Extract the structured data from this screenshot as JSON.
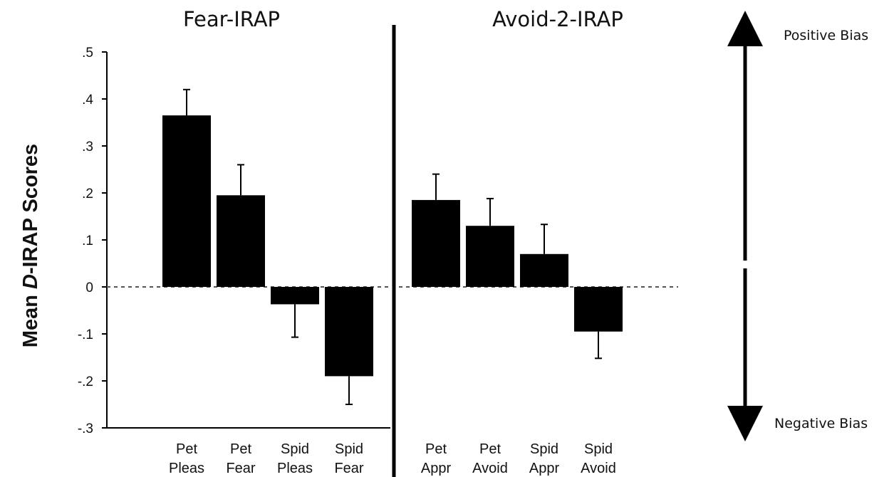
{
  "chart_data": {
    "type": "bar",
    "ylabel_prefix": "Mean ",
    "ylabel_italic": "D",
    "ylabel_suffix": "-IRAP Scores",
    "ylim": [
      -0.3,
      0.5
    ],
    "yticks": [
      {
        "value": 0.5,
        "label": ".5"
      },
      {
        "value": 0.4,
        "label": ".4"
      },
      {
        "value": 0.3,
        "label": ".3"
      },
      {
        "value": 0.2,
        "label": ".2"
      },
      {
        "value": 0.1,
        "label": ".1"
      },
      {
        "value": 0.0,
        "label": "0"
      },
      {
        "value": -0.1,
        "label": "-.1"
      },
      {
        "value": -0.2,
        "label": "-.2"
      },
      {
        "value": -0.3,
        "label": "-.3"
      }
    ],
    "zero_line": "dotted",
    "annotations": {
      "positive": "Positive Bias",
      "negative": "Negative Bias"
    },
    "panels": [
      {
        "title": "Fear-IRAP",
        "categories": [
          [
            "Pet",
            "Pleas"
          ],
          [
            "Pet",
            "Fear"
          ],
          [
            "Spid",
            "Pleas"
          ],
          [
            "Spid",
            "Fear"
          ]
        ],
        "values": [
          0.365,
          0.195,
          -0.037,
          -0.19
        ],
        "errors": [
          0.055,
          0.065,
          0.07,
          0.06
        ]
      },
      {
        "title": "Avoid-2-IRAP",
        "categories": [
          [
            "Pet",
            "Appr"
          ],
          [
            "Pet",
            "Avoid"
          ],
          [
            "Spid",
            "Appr"
          ],
          [
            "Spid",
            "Avoid"
          ]
        ],
        "values": [
          0.185,
          0.13,
          0.07,
          -0.095
        ],
        "errors": [
          0.055,
          0.058,
          0.063,
          0.057
        ]
      }
    ],
    "colors": {
      "bar": "#000000",
      "axis": "#000000",
      "zero_line": "#555555"
    }
  }
}
